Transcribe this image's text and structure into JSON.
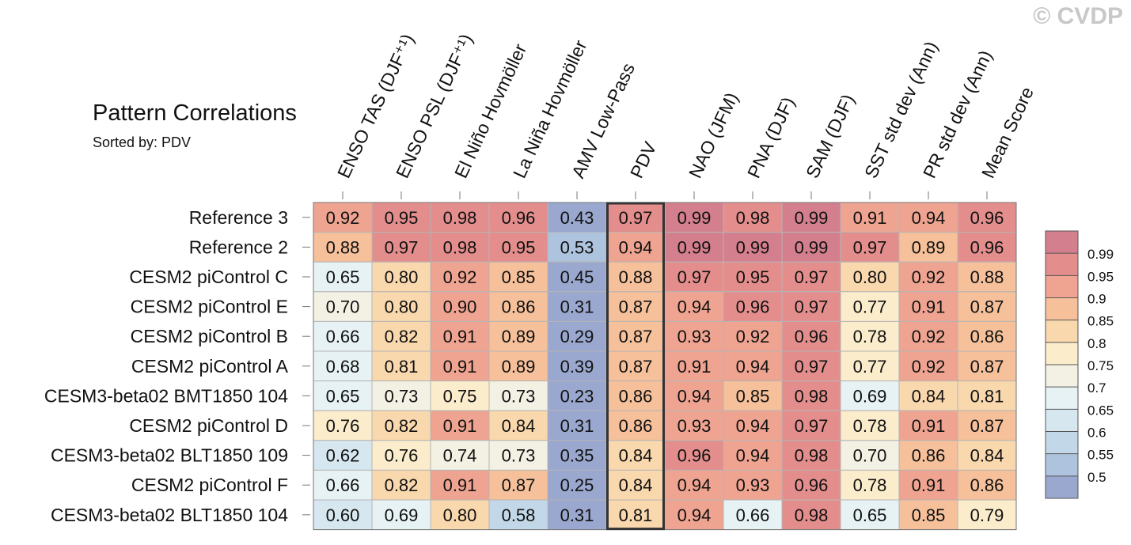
{
  "watermark": "© CVDP",
  "chart_data": {
    "type": "heatmap",
    "title": "Pattern Correlations",
    "subtitle": "Sorted by: PDV",
    "columns": [
      "ENSO TAS (DJF⁺¹)",
      "ENSO PSL (DJF⁺¹)",
      "El Niño Hovmöller",
      "La Niña Hovmöller",
      "AMV Low-Pass",
      "PDV",
      "NAO (JFM)",
      "PNA (DJF)",
      "SAM (DJF)",
      "SST std dev (Ann)",
      "PR std dev (Ann)",
      "Mean Score"
    ],
    "rows": [
      "Reference 3",
      "Reference 2",
      "CESM2 piControl C",
      "CESM2 piControl E",
      "CESM2 piControl B",
      "CESM2 piControl A",
      "CESM3-beta02 BMT1850 104",
      "CESM2 piControl D",
      "CESM3-beta02 BLT1850 109",
      "CESM2 piControl F",
      "CESM3-beta02 BLT1850 104"
    ],
    "values": [
      [
        0.92,
        0.95,
        0.98,
        0.96,
        0.43,
        0.97,
        0.99,
        0.98,
        0.99,
        0.91,
        0.94,
        0.96
      ],
      [
        0.88,
        0.97,
        0.98,
        0.95,
        0.53,
        0.94,
        0.99,
        0.99,
        0.99,
        0.97,
        0.89,
        0.96
      ],
      [
        0.65,
        0.8,
        0.92,
        0.85,
        0.45,
        0.88,
        0.97,
        0.95,
        0.97,
        0.8,
        0.92,
        0.88
      ],
      [
        0.7,
        0.8,
        0.9,
        0.86,
        0.31,
        0.87,
        0.94,
        0.96,
        0.97,
        0.77,
        0.91,
        0.87
      ],
      [
        0.66,
        0.82,
        0.91,
        0.89,
        0.29,
        0.87,
        0.93,
        0.92,
        0.96,
        0.78,
        0.92,
        0.86
      ],
      [
        0.68,
        0.81,
        0.91,
        0.89,
        0.39,
        0.87,
        0.91,
        0.94,
        0.97,
        0.77,
        0.92,
        0.87
      ],
      [
        0.65,
        0.73,
        0.75,
        0.73,
        0.23,
        0.86,
        0.94,
        0.85,
        0.98,
        0.69,
        0.84,
        0.81
      ],
      [
        0.76,
        0.82,
        0.91,
        0.84,
        0.31,
        0.86,
        0.93,
        0.94,
        0.97,
        0.78,
        0.91,
        0.87
      ],
      [
        0.62,
        0.76,
        0.74,
        0.73,
        0.35,
        0.84,
        0.96,
        0.94,
        0.98,
        0.7,
        0.86,
        0.84
      ],
      [
        0.66,
        0.82,
        0.91,
        0.87,
        0.25,
        0.84,
        0.94,
        0.93,
        0.96,
        0.78,
        0.91,
        0.86
      ],
      [
        0.6,
        0.69,
        0.8,
        0.58,
        0.31,
        0.81,
        0.94,
        0.66,
        0.98,
        0.65,
        0.85,
        0.79
      ]
    ],
    "value_labels": [
      [
        "0.92",
        "0.95",
        "0.98",
        "0.96",
        "0.43",
        "0.97",
        "0.99",
        "0.98",
        "0.99",
        "0.91",
        "0.94",
        "0.96"
      ],
      [
        "0.88",
        "0.97",
        "0.98",
        "0.95",
        "0.53",
        "0.94",
        "0.99",
        "0.99",
        "0.99",
        "0.97",
        "0.89",
        "0.96"
      ],
      [
        "0.65",
        "0.80",
        "0.92",
        "0.85",
        "0.45",
        "0.88",
        "0.97",
        "0.95",
        "0.97",
        "0.80",
        "0.92",
        "0.88"
      ],
      [
        "0.70",
        "0.80",
        "0.90",
        "0.86",
        "0.31",
        "0.87",
        "0.94",
        "0.96",
        "0.97",
        "0.77",
        "0.91",
        "0.87"
      ],
      [
        "0.66",
        "0.82",
        "0.91",
        "0.89",
        "0.29",
        "0.87",
        "0.93",
        "0.92",
        "0.96",
        "0.78",
        "0.92",
        "0.86"
      ],
      [
        "0.68",
        "0.81",
        "0.91",
        "0.89",
        "0.39",
        "0.87",
        "0.91",
        "0.94",
        "0.97",
        "0.77",
        "0.92",
        "0.87"
      ],
      [
        "0.65",
        "0.73",
        "0.75",
        "0.73",
        "0.23",
        "0.86",
        "0.94",
        "0.85",
        "0.98",
        "0.69",
        "0.84",
        "0.81"
      ],
      [
        "0.76",
        "0.82",
        "0.91",
        "0.84",
        "0.31",
        "0.86",
        "0.93",
        "0.94",
        "0.97",
        "0.78",
        "0.91",
        "0.87"
      ],
      [
        "0.62",
        "0.76",
        "0.74",
        "0.73",
        "0.35",
        "0.84",
        "0.96",
        "0.94",
        "0.98",
        "0.70",
        "0.86",
        "0.84"
      ],
      [
        "0.66",
        "0.82",
        "0.91",
        "0.87",
        "0.25",
        "0.84",
        "0.94",
        "0.93",
        "0.96",
        "0.78",
        "0.91",
        "0.86"
      ],
      [
        "0.60",
        "0.69",
        "0.80",
        "0.58",
        "0.31",
        "0.81",
        "0.94",
        "0.66",
        "0.98",
        "0.65",
        "0.85",
        "0.79"
      ]
    ],
    "highlighted_column": "PDV",
    "colorbar": {
      "levels": [
        0.5,
        0.55,
        0.6,
        0.65,
        0.7,
        0.75,
        0.8,
        0.85,
        0.9,
        0.95,
        0.99
      ],
      "labels": [
        "0.5",
        "0.55",
        "0.6",
        "0.65",
        "0.7",
        "0.75",
        "0.8",
        "0.85",
        "0.9",
        "0.95",
        "0.99"
      ],
      "colors": [
        "#9aa8cf",
        "#aec4de",
        "#c2d8e8",
        "#d6e7ef",
        "#e7f2f5",
        "#f3f1e4",
        "#fbeccc",
        "#f9d8ae",
        "#f5c09a",
        "#efa491",
        "#e38e8c",
        "#d47f8e"
      ]
    }
  }
}
